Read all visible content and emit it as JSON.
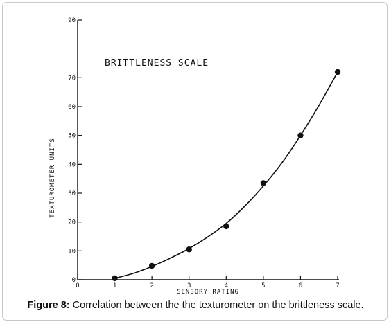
{
  "figure": {
    "caption_label": "Figure 8:",
    "caption_text": " Correlation between the the texturometer on the brittleness scale."
  },
  "chart_data": {
    "type": "scatter",
    "title": "BRITTLENESS SCALE",
    "xlabel": "SENSORY RATING",
    "ylabel": "TEXTUROMETER UNITS",
    "xlim": [
      0,
      7
    ],
    "ylim": [
      0,
      90
    ],
    "x_ticks": [
      "0",
      "1",
      "2",
      "3",
      "4",
      "5",
      "6",
      "7"
    ],
    "y_ticks": [
      "0",
      "10",
      "20",
      "30",
      "40",
      "50",
      "60",
      "70",
      "90"
    ],
    "grid": false,
    "series": [
      {
        "points": [
          {
            "x": 1,
            "y": 0.5
          },
          {
            "x": 2,
            "y": 4.8
          },
          {
            "x": 3,
            "y": 10.5
          },
          {
            "x": 4,
            "y": 18.5
          },
          {
            "x": 5,
            "y": 33.5
          },
          {
            "x": 6,
            "y": 50
          },
          {
            "x": 7,
            "y": 72
          }
        ]
      }
    ],
    "fit_curve": [
      {
        "x": 1,
        "y": 0.5
      },
      {
        "x": 1.5,
        "y": 2.2
      },
      {
        "x": 2,
        "y": 4.6
      },
      {
        "x": 2.5,
        "y": 7.5
      },
      {
        "x": 3,
        "y": 10.8
      },
      {
        "x": 3.5,
        "y": 14.8
      },
      {
        "x": 4,
        "y": 19.5
      },
      {
        "x": 4.5,
        "y": 25.5
      },
      {
        "x": 5,
        "y": 32.5
      },
      {
        "x": 5.5,
        "y": 40.5
      },
      {
        "x": 6,
        "y": 50
      },
      {
        "x": 6.5,
        "y": 60.5
      },
      {
        "x": 7,
        "y": 72
      }
    ]
  }
}
